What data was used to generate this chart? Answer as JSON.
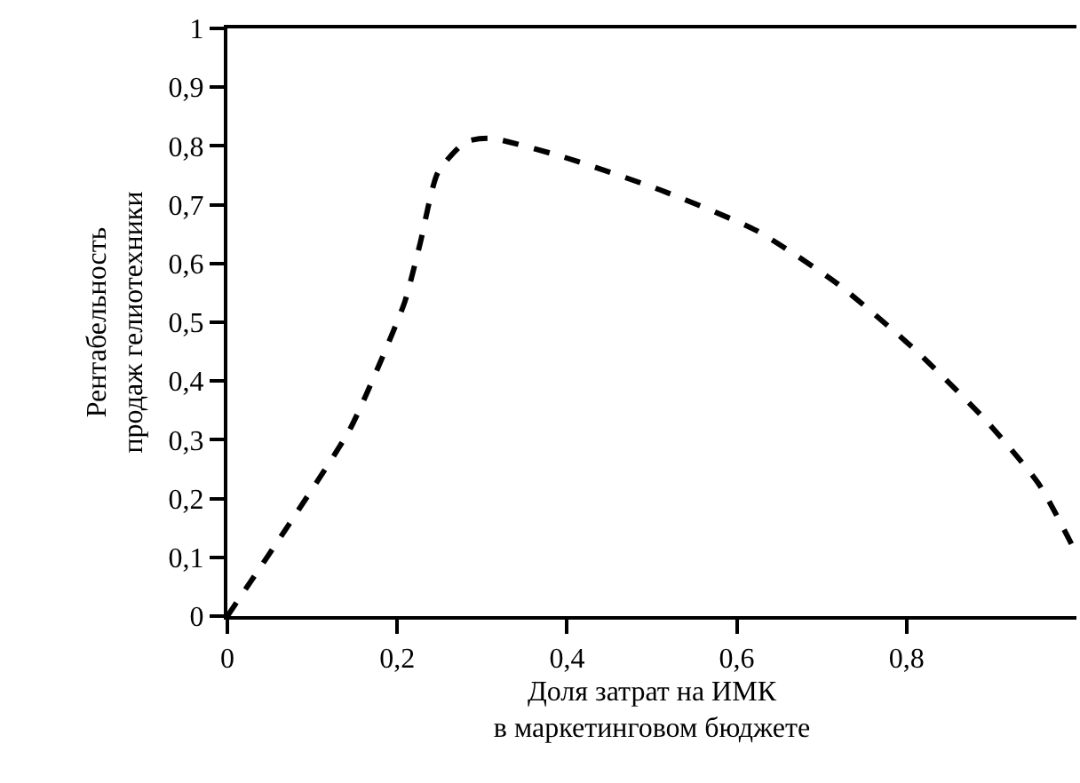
{
  "chart_data": {
    "type": "line",
    "xlabel": "Доля затрат на ИМК\nв маркетинговом бюджете",
    "ylabel": "Рентабельность\nпродаж гелиотехники",
    "x": [
      0,
      0.073,
      0.144,
      0.181,
      0.209,
      0.227,
      0.248,
      0.281,
      0.31,
      0.394,
      0.51,
      0.623,
      0.719,
      0.81,
      0.894,
      0.956,
      0.998
    ],
    "series": [
      {
        "color": "#000000",
        "values": [
          0,
          0.157,
          0.317,
          0.435,
          0.535,
          0.634,
          0.755,
          0.807,
          0.813,
          0.782,
          0.725,
          0.656,
          0.565,
          0.453,
          0.332,
          0.224,
          0.112
        ]
      }
    ],
    "xlim": [
      0,
      1
    ],
    "ylim": [
      0,
      1
    ],
    "xticks": [
      0,
      {
        "value": 0.2,
        "label": "0,2"
      },
      {
        "value": 0.4,
        "label": "0,4"
      },
      {
        "value": 0.6,
        "label": "0,6"
      },
      {
        "value": 0.8,
        "label": "0,8"
      }
    ],
    "yticks": [
      0,
      {
        "value": 0.1,
        "label": "0,1"
      },
      {
        "value": 0.2,
        "label": "0,2"
      },
      {
        "value": 0.3,
        "label": "0,3"
      },
      {
        "value": 0.4,
        "label": "0,4"
      },
      {
        "value": 0.5,
        "label": "0,5"
      },
      {
        "value": 0.6,
        "label": "0,6"
      },
      {
        "value": 0.7,
        "label": "0,7"
      },
      {
        "value": 0.8,
        "label": "0,8"
      },
      {
        "value": 0.9,
        "label": "0,9"
      },
      1
    ],
    "marker": "none",
    "line_style": "dashed"
  }
}
